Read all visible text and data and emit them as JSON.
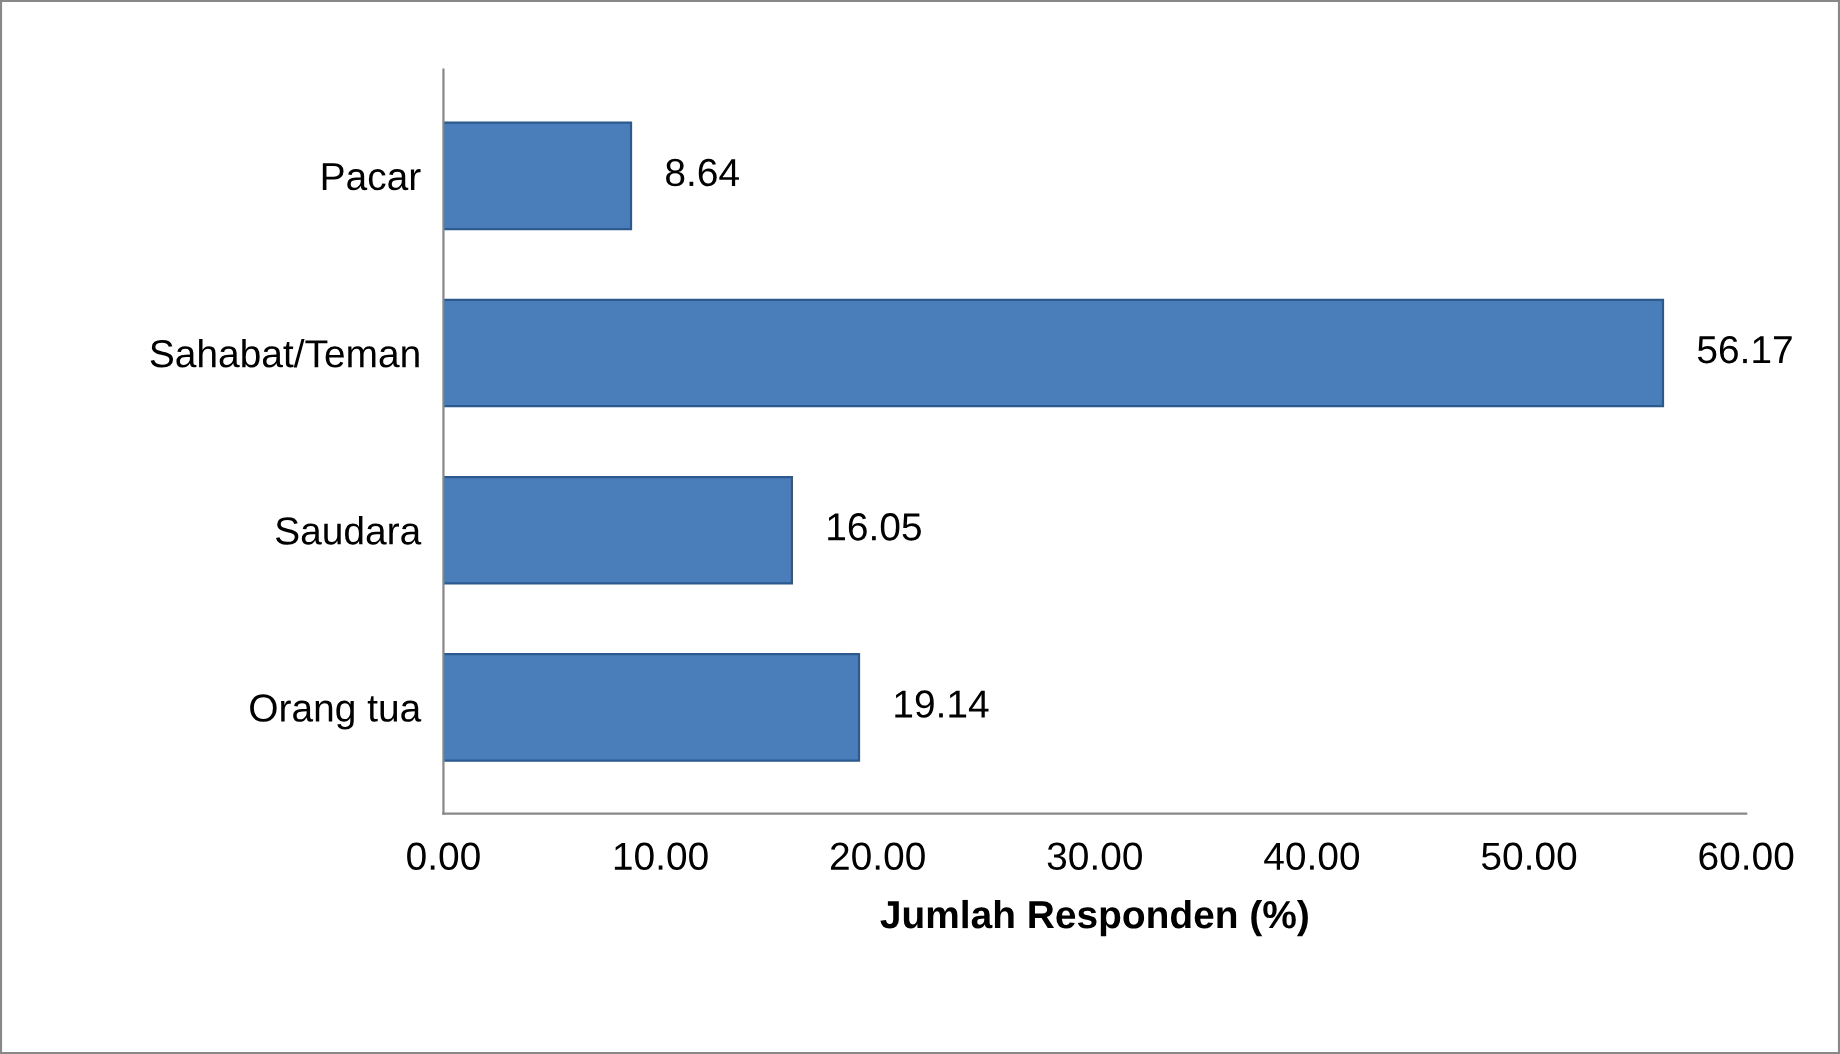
{
  "chart_data": {
    "type": "bar",
    "orientation": "horizontal",
    "xlabel": "Jumlah Responden (%)",
    "categories": [
      "Pacar",
      "Sahabat/Teman",
      "Saudara",
      "Orang tua"
    ],
    "values": [
      8.64,
      56.17,
      16.05,
      19.14
    ],
    "color": "#4a7ebb",
    "xlim": [
      0,
      60
    ],
    "xticks": [
      {
        "value": 0,
        "label": "0.00"
      },
      {
        "value": 10,
        "label": "10.00"
      },
      {
        "value": 20,
        "label": "20.00"
      },
      {
        "value": 30,
        "label": "30.00"
      },
      {
        "value": 40,
        "label": "40.00"
      },
      {
        "value": 50,
        "label": "50.00"
      },
      {
        "value": 60,
        "label": "60.00"
      }
    ],
    "data_labels": true,
    "grid": false,
    "legend": false
  }
}
